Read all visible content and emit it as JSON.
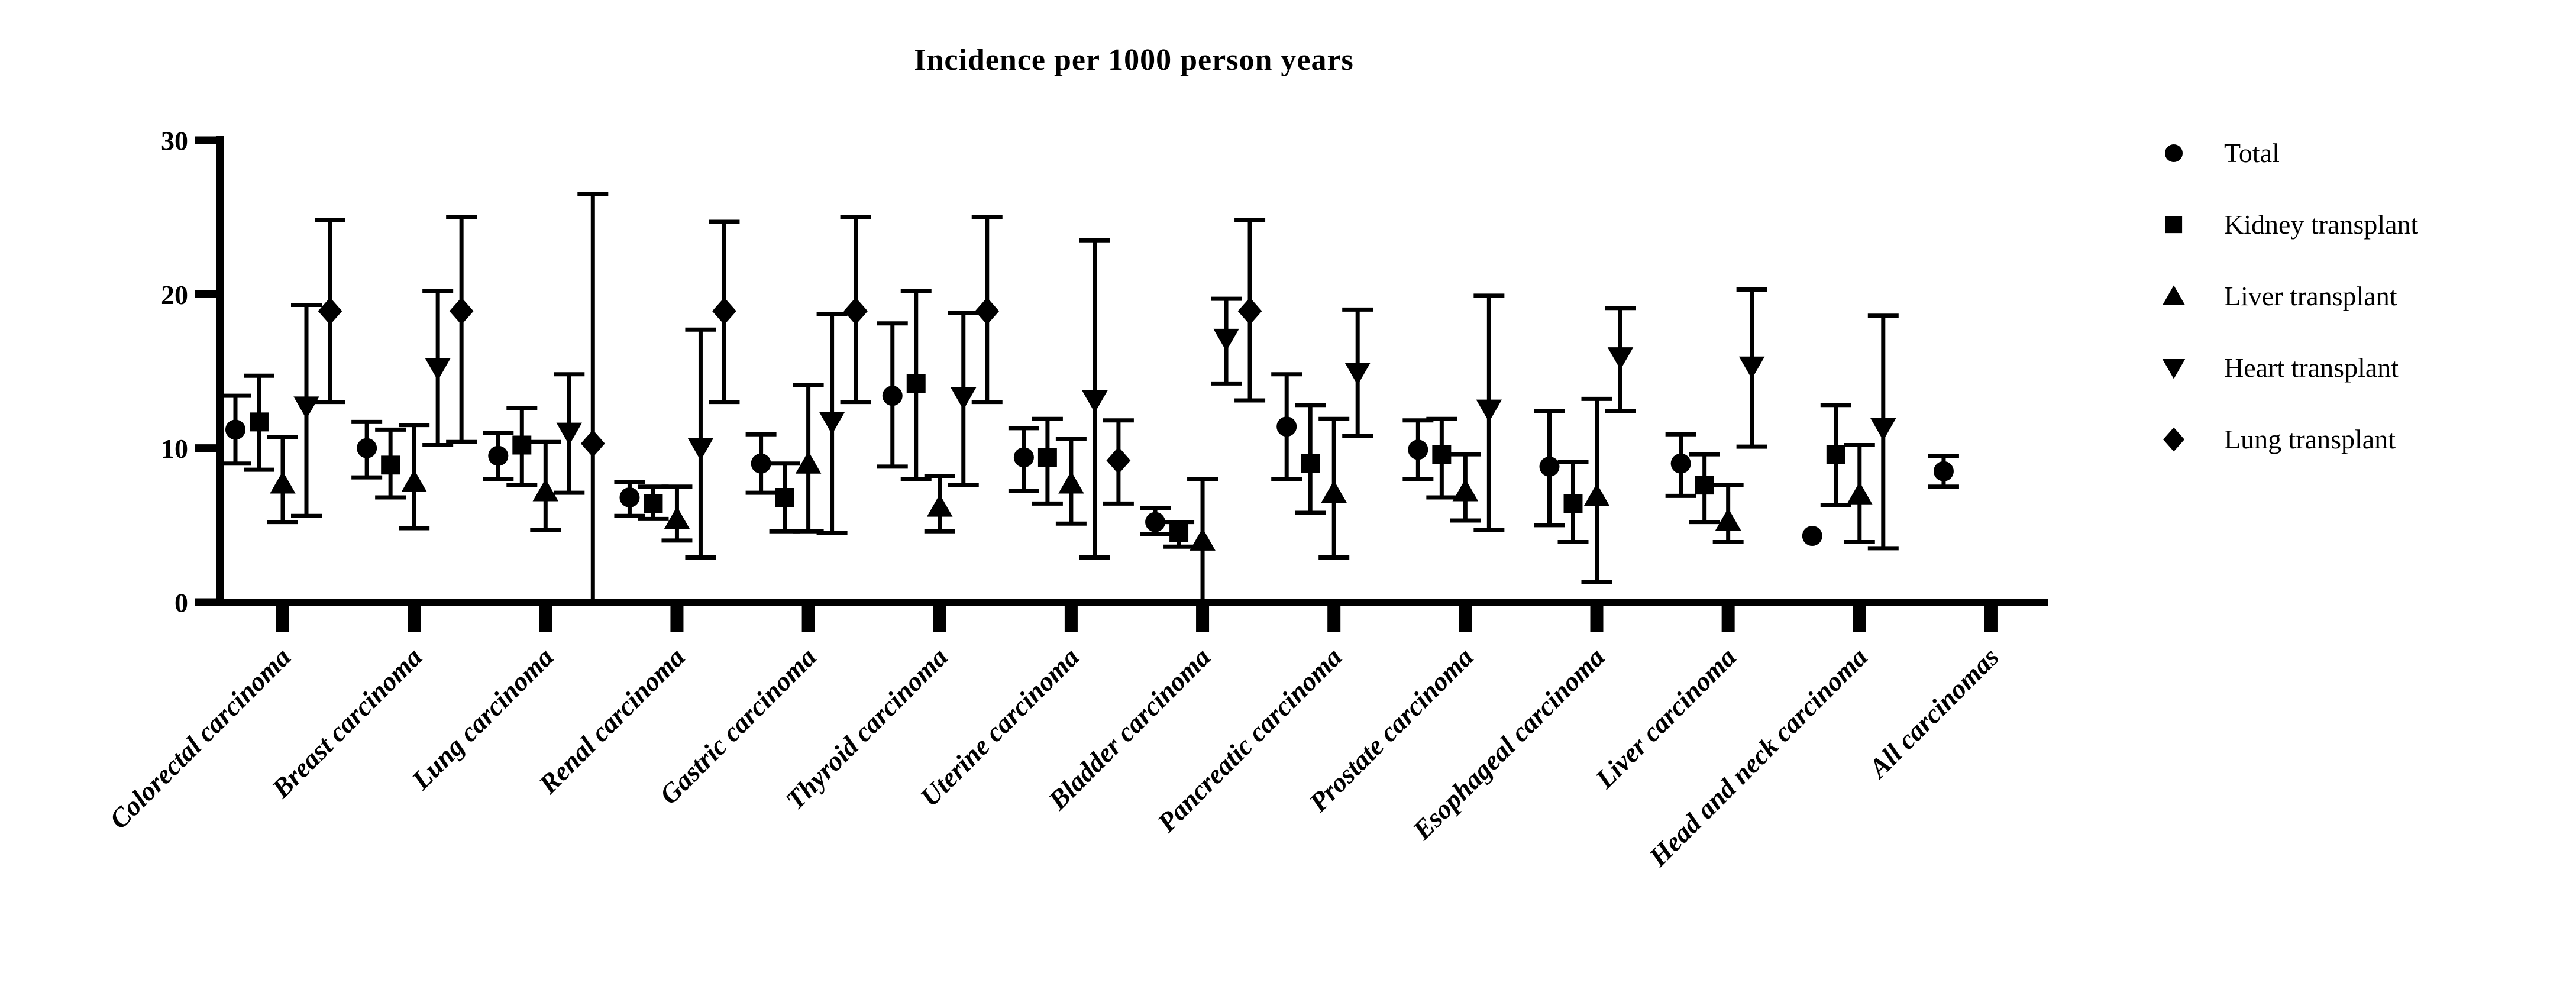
{
  "colors": {
    "foreground": "#000000",
    "background": "#ffffff"
  },
  "chart_data": {
    "type": "scatter",
    "title": "Incidence per 1000 person years",
    "xlabel": "",
    "ylabel": "",
    "ylim": [
      0,
      30
    ],
    "yticks": [
      0,
      10,
      20,
      30
    ],
    "grid": false,
    "legend_position": "top-right",
    "marker_color": "#000000",
    "categories": [
      "Colorectal carcinoma",
      "Breast carcinoma",
      "Lung carcinoma",
      "Renal carcinoma",
      "Gastric carcinoma",
      "Thyroid carcinoma",
      "Uterine carcinoma",
      "Bladder carcinoma",
      "Pancreatic carcinoma",
      "Prostate carcinoma",
      "Esophageal carcinoma",
      "Liver carcinoma",
      "Head and neck carcinoma",
      "All carcinomas"
    ],
    "series": [
      {
        "name": "Total",
        "marker": "circle",
        "points": [
          {
            "v": 11.2,
            "lo": 9.0,
            "hi": 13.4
          },
          {
            "v": 10.0,
            "lo": 8.1,
            "hi": 11.7
          },
          {
            "v": 9.5,
            "lo": 8.0,
            "hi": 11.0
          },
          {
            "v": 6.8,
            "lo": 5.6,
            "hi": 7.8
          },
          {
            "v": 9.0,
            "lo": 7.1,
            "hi": 10.9
          },
          {
            "v": 13.4,
            "lo": 8.8,
            "hi": 18.1
          },
          {
            "v": 9.4,
            "lo": 7.2,
            "hi": 11.3
          },
          {
            "v": 5.2,
            "lo": 4.4,
            "hi": 6.1
          },
          {
            "v": 11.4,
            "lo": 8.0,
            "hi": 14.8
          },
          {
            "v": 9.9,
            "lo": 8.0,
            "hi": 11.8
          },
          {
            "v": 8.8,
            "lo": 5.0,
            "hi": 12.4
          },
          {
            "v": 9.0,
            "lo": 6.9,
            "hi": 10.9
          },
          {
            "v": 4.3,
            "lo": null,
            "hi": null
          },
          {
            "v": 8.5,
            "lo": 7.5,
            "hi": 9.5
          }
        ]
      },
      {
        "name": "Kidney transplant",
        "marker": "square",
        "points": [
          {
            "v": 11.7,
            "lo": 8.6,
            "hi": 14.7
          },
          {
            "v": 8.9,
            "lo": 6.8,
            "hi": 11.2
          },
          {
            "v": 10.2,
            "lo": 7.6,
            "hi": 12.6
          },
          {
            "v": 6.4,
            "lo": 5.4,
            "hi": 7.5
          },
          {
            "v": 6.8,
            "lo": 4.6,
            "hi": 9.0
          },
          {
            "v": 14.2,
            "lo": 8.0,
            "hi": 20.2
          },
          {
            "v": 9.4,
            "lo": 6.4,
            "hi": 11.9
          },
          {
            "v": 4.5,
            "lo": 3.6,
            "hi": 5.2
          },
          {
            "v": 9.0,
            "lo": 5.8,
            "hi": 12.8
          },
          {
            "v": 9.6,
            "lo": 6.8,
            "hi": 11.9
          },
          {
            "v": 6.4,
            "lo": 3.9,
            "hi": 9.1
          },
          {
            "v": 7.6,
            "lo": 5.2,
            "hi": 9.6
          },
          {
            "v": 9.6,
            "lo": 6.3,
            "hi": 12.8
          },
          null
        ]
      },
      {
        "name": "Liver transplant",
        "marker": "triangle-up",
        "points": [
          {
            "v": 7.7,
            "lo": 5.2,
            "hi": 10.7
          },
          {
            "v": 7.8,
            "lo": 4.8,
            "hi": 11.5
          },
          {
            "v": 7.2,
            "lo": 4.7,
            "hi": 10.4
          },
          {
            "v": 5.4,
            "lo": 4.0,
            "hi": 7.5
          },
          {
            "v": 9.0,
            "lo": 4.6,
            "hi": 14.1
          },
          {
            "v": 6.2,
            "lo": 4.6,
            "hi": 8.2
          },
          {
            "v": 7.7,
            "lo": 5.1,
            "hi": 10.6
          },
          {
            "v": 4.0,
            "lo": 0.0,
            "hi": 8.0,
            "open_lo": true
          },
          {
            "v": 7.1,
            "lo": 2.9,
            "hi": 11.9
          },
          {
            "v": 7.2,
            "lo": 5.3,
            "hi": 9.6
          },
          {
            "v": 6.9,
            "lo": 1.3,
            "hi": 13.2
          },
          {
            "v": 5.3,
            "lo": 3.9,
            "hi": 7.6
          },
          {
            "v": 7.0,
            "lo": 3.9,
            "hi": 10.2
          },
          null
        ]
      },
      {
        "name": "Heart transplant",
        "marker": "triangle-down",
        "points": [
          {
            "v": 12.7,
            "lo": 5.6,
            "hi": 19.3
          },
          {
            "v": 15.2,
            "lo": 10.2,
            "hi": 20.2
          },
          {
            "v": 11.0,
            "lo": 7.1,
            "hi": 14.8
          },
          {
            "v": 10.0,
            "lo": 2.9,
            "hi": 17.7
          },
          {
            "v": 11.7,
            "lo": 4.5,
            "hi": 18.7
          },
          {
            "v": 13.3,
            "lo": 7.6,
            "hi": 18.8
          },
          {
            "v": 13.1,
            "lo": 2.9,
            "hi": 23.5
          },
          {
            "v": 17.1,
            "lo": 14.2,
            "hi": 19.7
          },
          {
            "v": 14.9,
            "lo": 10.8,
            "hi": 19.0
          },
          {
            "v": 12.5,
            "lo": 4.7,
            "hi": 19.9
          },
          {
            "v": 15.9,
            "lo": 12.4,
            "hi": 19.1
          },
          {
            "v": 15.3,
            "lo": 10.1,
            "hi": 20.3
          },
          {
            "v": 11.3,
            "lo": 3.5,
            "hi": 18.6
          },
          null
        ]
      },
      {
        "name": "Lung transplant",
        "marker": "diamond",
        "points": [
          {
            "v": 18.9,
            "lo": 13.0,
            "hi": 24.8
          },
          {
            "v": 18.9,
            "lo": 10.4,
            "hi": 25.0
          },
          {
            "v": 10.3,
            "lo": 0.2,
            "hi": 26.5,
            "open_lo": true
          },
          {
            "v": 18.9,
            "lo": 13.0,
            "hi": 24.7
          },
          {
            "v": 18.9,
            "lo": 13.0,
            "hi": 25.0
          },
          {
            "v": 18.9,
            "lo": 13.0,
            "hi": 25.0
          },
          {
            "v": 9.2,
            "lo": 6.4,
            "hi": 11.8
          },
          {
            "v": 18.9,
            "lo": 13.1,
            "hi": 24.8
          },
          null,
          null,
          null,
          null,
          null,
          null
        ]
      }
    ]
  }
}
